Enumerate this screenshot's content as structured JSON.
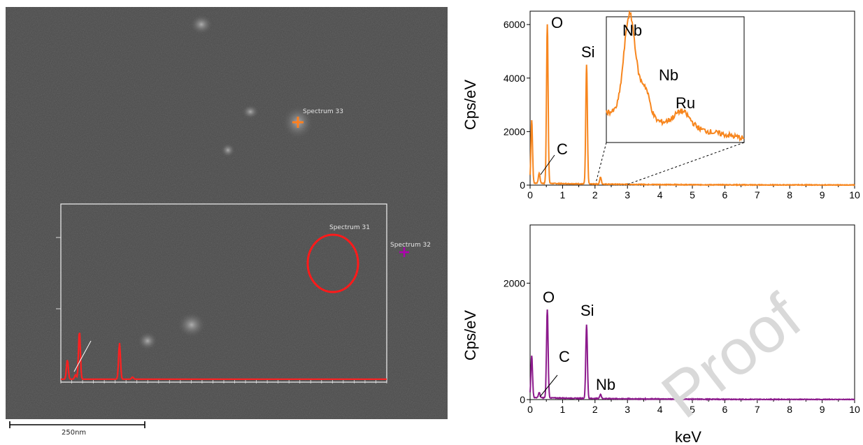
{
  "micrograph": {
    "spectrum_labels": [
      "Spectrum 33",
      "Spectrum 31",
      "Spectrum 32"
    ],
    "scale_bar_label": "250nm",
    "colors": {
      "orange_marker": "#ff7f1e",
      "purple_marker": "#b000b0",
      "red_roi": "#ff1a1a"
    }
  },
  "watermark": "Proof",
  "chart_data": [
    {
      "type": "line",
      "color": "#f7861e",
      "xlim": [
        0,
        10
      ],
      "ylim": [
        0,
        6500
      ],
      "xticks": [
        "0",
        "1",
        "2",
        "3",
        "4",
        "5",
        "6",
        "7",
        "8",
        "9",
        "10"
      ],
      "yticks": [
        "0",
        "2000",
        "4000",
        "6000"
      ],
      "ylabel": "Cps/eV",
      "xlabel": "",
      "peaks": [
        {
          "x": 0.05,
          "y": 2350
        },
        {
          "x": 0.28,
          "y": 380
        },
        {
          "x": 0.53,
          "y": 5950
        },
        {
          "x": 1.74,
          "y": 4450
        },
        {
          "x": 2.17,
          "y": 260
        }
      ],
      "annotations": [
        "O",
        "Si",
        "C"
      ],
      "inset": {
        "labels": [
          "Nb",
          "Nb",
          "Ru"
        ],
        "x_range": [
          2.0,
          3.0
        ]
      }
    },
    {
      "type": "line",
      "color": "#8c1a8c",
      "xlim": [
        0,
        10
      ],
      "ylim": [
        0,
        3000
      ],
      "xticks": [
        "0",
        "1",
        "2",
        "3",
        "4",
        "5",
        "6",
        "7",
        "8",
        "9",
        "10"
      ],
      "yticks": [
        "0",
        "2000"
      ],
      "ylabel": "Cps/eV",
      "xlabel": "keV",
      "peaks": [
        {
          "x": 0.05,
          "y": 720
        },
        {
          "x": 0.28,
          "y": 90
        },
        {
          "x": 0.53,
          "y": 1520
        },
        {
          "x": 1.74,
          "y": 1270
        },
        {
          "x": 2.17,
          "y": 75
        }
      ],
      "annotations": [
        "O",
        "Si",
        "C",
        "Nb"
      ]
    }
  ]
}
